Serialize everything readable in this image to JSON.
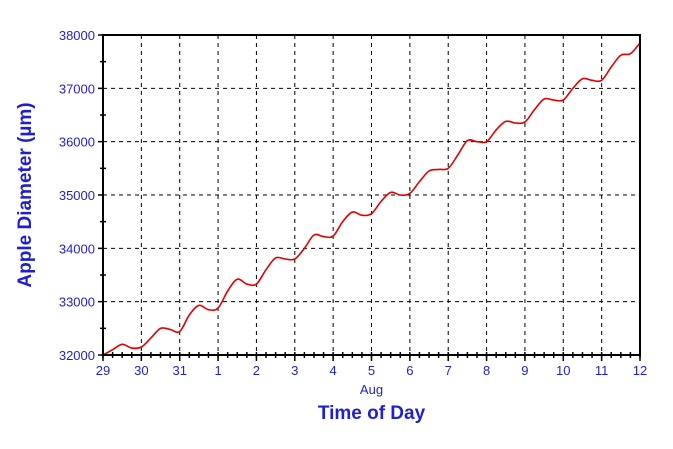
{
  "chart_data": {
    "type": "line",
    "title": "",
    "xlabel": "Time of Day",
    "ylabel": "Apple Diameter (µm)",
    "x_month_label": "Aug",
    "xlim": [
      0,
      14
    ],
    "ylim": [
      32000,
      38000
    ],
    "x_ticks": [
      "29",
      "30",
      "31",
      "1",
      "2",
      "3",
      "4",
      "5",
      "6",
      "7",
      "8",
      "9",
      "10",
      "11",
      "12"
    ],
    "y_ticks": [
      "32000",
      "33000",
      "34000",
      "35000",
      "36000",
      "37000",
      "38000"
    ],
    "grid": true,
    "line_color": "#e00000",
    "text_color": "#1f1fd0",
    "series": [
      {
        "x": [
          0,
          0.25,
          0.5,
          0.75,
          1,
          1.25,
          1.5,
          1.75,
          2,
          2.25,
          2.5,
          2.75,
          3,
          3.25,
          3.5,
          3.75,
          4,
          4.25,
          4.5,
          4.75,
          5,
          5.25,
          5.5,
          5.75,
          6,
          6.25,
          6.5,
          6.75,
          7,
          7.25,
          7.5,
          7.75,
          8,
          8.25,
          8.5,
          8.75,
          9,
          9.25,
          9.5,
          9.75,
          10,
          10.25,
          10.5,
          10.75,
          11,
          11.25,
          11.5,
          11.75,
          12,
          12.25,
          12.5,
          12.75,
          13,
          13.25,
          13.5,
          13.75,
          14
        ],
        "values": [
          32000,
          32100,
          32200,
          32130,
          32150,
          32320,
          32500,
          32480,
          32440,
          32750,
          32930,
          32850,
          32880,
          33200,
          33420,
          33330,
          33330,
          33600,
          33820,
          33800,
          33800,
          34000,
          34250,
          34220,
          34230,
          34500,
          34680,
          34620,
          34650,
          34880,
          35050,
          35000,
          35030,
          35250,
          35450,
          35480,
          35500,
          35750,
          36020,
          36000,
          36000,
          36220,
          36380,
          36350,
          36370,
          36600,
          36800,
          36780,
          36780,
          37000,
          37180,
          37150,
          37150,
          37400,
          37620,
          37650,
          37850
        ]
      }
    ]
  }
}
